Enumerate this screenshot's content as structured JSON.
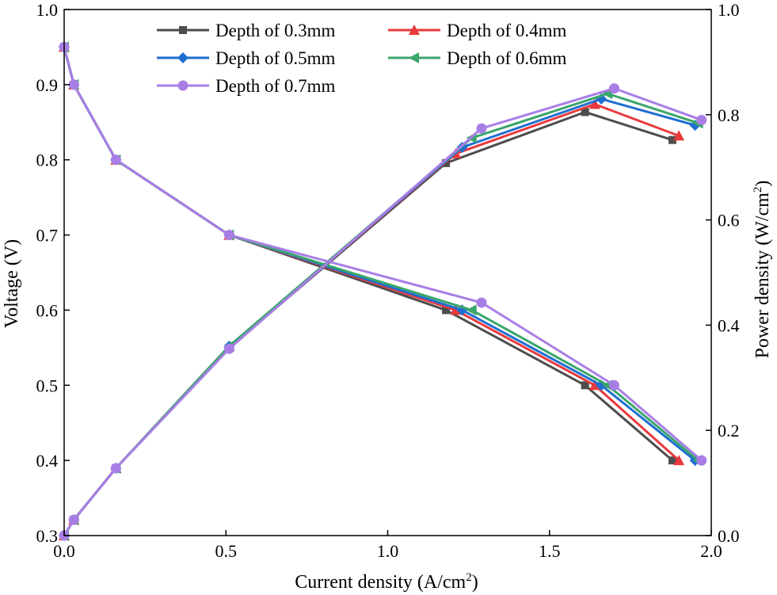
{
  "chart_data": {
    "type": "line",
    "title": "",
    "xlabel": "Current density (A/cm",
    "xlabel_sup": "2",
    "xlabel_end": ")",
    "ylabel_left": "Voltage  (V)",
    "ylabel_right": "Power density (W/cm",
    "ylabel_right_sup": "2",
    "ylabel_right_end": ")",
    "xlim": [
      0.0,
      2.0
    ],
    "ylim_left": [
      0.3,
      1.0
    ],
    "ylim_right": [
      0.0,
      1.0
    ],
    "x_ticks": [
      "0.0",
      "0.5",
      "1.0",
      "1.5",
      "2.0"
    ],
    "y_left_ticks": [
      "0.3",
      "0.4",
      "0.5",
      "0.6",
      "0.7",
      "0.8",
      "0.9",
      "1.0"
    ],
    "y_right_ticks": [
      "0.0",
      "0.2",
      "0.4",
      "0.6",
      "0.8",
      "1.0"
    ],
    "legend_position": "top-center",
    "series": [
      {
        "name": "Depth of 0.3mm",
        "color": "#4d4d4d",
        "marker": "square",
        "polarization": {
          "x": [
            0.0,
            0.03,
            0.16,
            0.51,
            1.18,
            1.61,
            1.88
          ],
          "y": [
            0.95,
            0.9,
            0.8,
            0.7,
            0.6,
            0.5,
            0.4
          ]
        },
        "power": {
          "x": [
            0.0,
            0.03,
            0.16,
            0.51,
            1.18,
            1.61,
            1.88
          ],
          "y": [
            0.0,
            0.03,
            0.128,
            0.357,
            0.708,
            0.805,
            0.752
          ]
        }
      },
      {
        "name": "Depth of 0.4mm",
        "color": "#e8393c",
        "marker": "triangle-up",
        "polarization": {
          "x": [
            0.0,
            0.03,
            0.16,
            0.51,
            1.21,
            1.64,
            1.9
          ],
          "y": [
            0.95,
            0.9,
            0.8,
            0.7,
            0.6,
            0.5,
            0.4
          ]
        },
        "power": {
          "x": [
            0.0,
            0.03,
            0.16,
            0.51,
            1.21,
            1.64,
            1.9
          ],
          "y": [
            0.0,
            0.03,
            0.128,
            0.36,
            0.726,
            0.82,
            0.76
          ]
        }
      },
      {
        "name": "Depth of 0.5mm",
        "color": "#1f6fd1",
        "marker": "diamond",
        "polarization": {
          "x": [
            0.0,
            0.03,
            0.16,
            0.51,
            1.23,
            1.66,
            1.95
          ],
          "y": [
            0.95,
            0.9,
            0.8,
            0.7,
            0.6,
            0.5,
            0.4
          ]
        },
        "power": {
          "x": [
            0.0,
            0.03,
            0.16,
            0.51,
            1.23,
            1.66,
            1.95
          ],
          "y": [
            0.0,
            0.03,
            0.128,
            0.36,
            0.738,
            0.83,
            0.78
          ]
        }
      },
      {
        "name": "Depth of 0.6mm",
        "color": "#3aa66b",
        "marker": "triangle-left",
        "polarization": {
          "x": [
            0.0,
            0.03,
            0.16,
            0.51,
            1.26,
            1.68,
            1.96
          ],
          "y": [
            0.95,
            0.9,
            0.8,
            0.7,
            0.6,
            0.5,
            0.4
          ]
        },
        "power": {
          "x": [
            0.0,
            0.03,
            0.16,
            0.51,
            1.26,
            1.68,
            1.96
          ],
          "y": [
            0.0,
            0.03,
            0.128,
            0.36,
            0.756,
            0.84,
            0.784
          ]
        }
      },
      {
        "name": "Depth of 0.7mm",
        "color": "#a87ee6",
        "marker": "circle",
        "polarization": {
          "x": [
            0.0,
            0.03,
            0.16,
            0.51,
            1.29,
            1.7,
            1.97
          ],
          "y": [
            0.95,
            0.9,
            0.8,
            0.7,
            0.61,
            0.5,
            0.4
          ]
        },
        "power": {
          "x": [
            0.0,
            0.03,
            0.16,
            0.51,
            1.29,
            1.7,
            1.97
          ],
          "y": [
            0.0,
            0.03,
            0.128,
            0.355,
            0.774,
            0.85,
            0.79
          ]
        }
      }
    ]
  }
}
